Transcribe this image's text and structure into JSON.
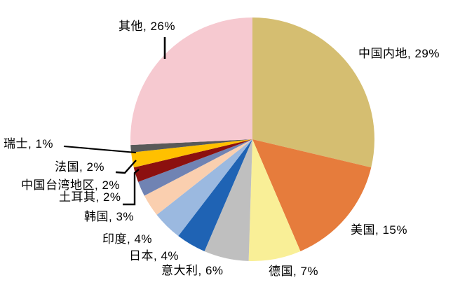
{
  "chart_data": {
    "type": "pie",
    "title": "",
    "unit": "%",
    "legend_position": "none",
    "labels_position": "outside-callouts",
    "start_angle_deg": 0,
    "direction": "clockwise",
    "slices": [
      {
        "key": "china-mainland",
        "name": "中国内地",
        "value": 29,
        "color": "#D5BE71",
        "label": "中国内地, 29%"
      },
      {
        "key": "usa",
        "name": "美国",
        "value": 15,
        "color": "#E67C3C",
        "label": "美国, 15%"
      },
      {
        "key": "germany",
        "name": "德国",
        "value": 7,
        "color": "#F9EF97",
        "label": "德国, 7%"
      },
      {
        "key": "italy",
        "name": "意大利",
        "value": 6,
        "color": "#BFBFBF",
        "label": "意大利, 6%"
      },
      {
        "key": "japan",
        "name": "日本",
        "value": 4,
        "color": "#1F63B4",
        "label": "日本, 4%"
      },
      {
        "key": "india",
        "name": "印度",
        "value": 4,
        "color": "#9BB9E0",
        "label": "印度, 4%"
      },
      {
        "key": "south-korea",
        "name": "韩国",
        "value": 3,
        "color": "#FACFAF",
        "label": "韩国, 3%"
      },
      {
        "key": "turkey",
        "name": "土耳其",
        "value": 2,
        "color": "#7083B3",
        "label": "土耳其, 2%"
      },
      {
        "key": "taiwan-china",
        "name": "中国台湾地区",
        "value": 2,
        "color": "#8C100F",
        "label": "中国台湾地区, 2%"
      },
      {
        "key": "france",
        "name": "法国",
        "value": 2,
        "color": "#FFC000",
        "label": "法国, 2%"
      },
      {
        "key": "switzerland",
        "name": "瑞士",
        "value": 1,
        "color": "#595959",
        "label": "瑞士, 1%"
      },
      {
        "key": "others",
        "name": "其他",
        "value": 26,
        "color": "#F6C9D0",
        "label": "其他, 26%"
      }
    ]
  }
}
